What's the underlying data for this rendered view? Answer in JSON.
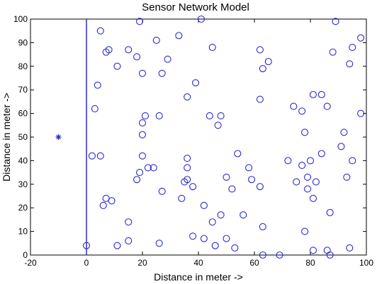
{
  "chart_data": {
    "type": "scatter",
    "title": "Sensor Network Model",
    "xlabel": "Distance in meter ->",
    "ylabel": "Distance in meter ->",
    "xlim": [
      -20,
      100
    ],
    "ylim": [
      0,
      100
    ],
    "xticks": [
      -20,
      0,
      20,
      40,
      60,
      80,
      100
    ],
    "yticks": [
      0,
      10,
      20,
      30,
      40,
      50,
      60,
      70,
      80,
      90,
      100
    ],
    "grid": false,
    "legend": "none",
    "marker_color": "#2a2ad0",
    "vertical_line_x": 0,
    "sink": {
      "x": -10,
      "y": 50,
      "marker": "star"
    },
    "series": [
      {
        "marker": "circle",
        "points": [
          [
            19,
            99
          ],
          [
            41,
            100
          ],
          [
            89,
            99
          ],
          [
            5,
            95
          ],
          [
            33,
            93
          ],
          [
            98,
            92
          ],
          [
            25,
            91
          ],
          [
            15,
            87
          ],
          [
            45,
            88
          ],
          [
            62,
            87
          ],
          [
            7,
            86
          ],
          [
            8,
            87
          ],
          [
            95,
            88
          ],
          [
            88,
            86
          ],
          [
            18,
            84
          ],
          [
            29,
            83
          ],
          [
            65,
            82
          ],
          [
            94,
            81
          ],
          [
            11,
            80
          ],
          [
            63,
            79
          ],
          [
            20,
            77
          ],
          [
            27,
            77
          ],
          [
            39,
            73
          ],
          [
            4,
            72
          ],
          [
            36,
            67
          ],
          [
            62,
            66
          ],
          [
            81,
            68
          ],
          [
            84,
            68
          ],
          [
            74,
            63
          ],
          [
            77,
            61
          ],
          [
            86,
            63
          ],
          [
            3,
            62
          ],
          [
            21,
            59
          ],
          [
            26,
            59
          ],
          [
            44,
            59
          ],
          [
            48,
            59
          ],
          [
            98,
            60
          ],
          [
            20,
            56
          ],
          [
            47,
            55
          ],
          [
            78,
            52
          ],
          [
            20,
            51
          ],
          [
            92,
            52
          ],
          [
            91,
            46
          ],
          [
            84,
            43
          ],
          [
            54,
            43
          ],
          [
            2,
            42
          ],
          [
            5,
            42
          ],
          [
            20,
            42
          ],
          [
            36,
            41
          ],
          [
            72,
            40
          ],
          [
            80,
            40
          ],
          [
            95,
            40
          ],
          [
            77,
            38
          ],
          [
            58,
            37
          ],
          [
            22,
            37
          ],
          [
            24,
            37
          ],
          [
            36,
            37
          ],
          [
            19,
            35
          ],
          [
            79,
            33
          ],
          [
            50,
            33
          ],
          [
            36,
            32
          ],
          [
            35,
            31
          ],
          [
            59,
            32
          ],
          [
            75,
            31
          ],
          [
            82,
            31
          ],
          [
            93,
            33
          ],
          [
            18,
            32
          ],
          [
            38,
            29
          ],
          [
            62,
            29
          ],
          [
            79,
            28
          ],
          [
            52,
            28
          ],
          [
            27,
            27
          ],
          [
            7,
            24
          ],
          [
            81,
            24
          ],
          [
            34,
            24
          ],
          [
            9,
            23
          ],
          [
            6,
            21
          ],
          [
            42,
            21
          ],
          [
            87,
            18
          ],
          [
            48,
            17
          ],
          [
            56,
            17
          ],
          [
            15,
            14
          ],
          [
            45,
            14
          ],
          [
            63,
            12
          ],
          [
            78,
            10
          ],
          [
            38,
            8
          ],
          [
            50,
            7
          ],
          [
            15,
            6
          ],
          [
            42,
            7
          ],
          [
            26,
            5
          ],
          [
            0,
            4
          ],
          [
            11,
            4
          ],
          [
            46,
            4
          ],
          [
            53,
            3
          ],
          [
            94,
            3
          ],
          [
            81,
            2
          ],
          [
            86,
            2
          ],
          [
            63,
            0
          ],
          [
            69,
            0
          ],
          [
            87,
            0
          ]
        ]
      }
    ]
  }
}
